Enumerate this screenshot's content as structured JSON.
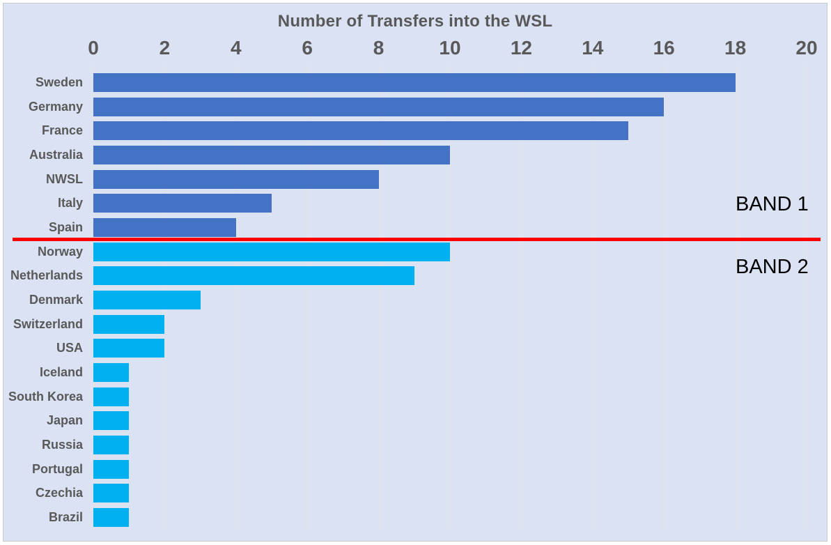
{
  "chart_data": {
    "type": "bar",
    "orientation": "horizontal",
    "title": "Number of Transfers into the WSL",
    "xlabel": "",
    "ylabel": "",
    "xlim": [
      0,
      20
    ],
    "x_ticks": [
      0,
      2,
      4,
      6,
      8,
      10,
      12,
      14,
      16,
      18,
      20
    ],
    "grid": true,
    "legend": "none",
    "axis_position": "top",
    "categories": [
      "Sweden",
      "Germany",
      "France",
      "Australia",
      "NWSL",
      "Italy",
      "Spain",
      "Norway",
      "Netherlands",
      "Denmark",
      "Switzerland",
      "USA",
      "Iceland",
      "South Korea",
      "Japan",
      "Russia",
      "Portugal",
      "Czechia",
      "Brazil"
    ],
    "values": [
      18,
      16,
      15,
      10,
      8,
      5,
      4,
      10,
      9,
      3,
      2,
      2,
      1,
      1,
      1,
      1,
      1,
      1,
      1
    ],
    "series": [
      {
        "name": "Band 1",
        "color": "#4472C4",
        "categories": [
          "Sweden",
          "Germany",
          "France",
          "Australia",
          "NWSL",
          "Italy",
          "Spain"
        ],
        "values": [
          18,
          16,
          15,
          10,
          8,
          5,
          4
        ]
      },
      {
        "name": "Band 2",
        "color": "#00B0F0",
        "categories": [
          "Norway",
          "Netherlands",
          "Denmark",
          "Switzerland",
          "USA",
          "Iceland",
          "South Korea",
          "Japan",
          "Russia",
          "Portugal",
          "Czechia",
          "Brazil"
        ],
        "values": [
          10,
          9,
          3,
          2,
          2,
          1,
          1,
          1,
          1,
          1,
          1,
          1
        ]
      }
    ],
    "annotations": [
      {
        "text": "BAND 1",
        "color": "#000000",
        "position": "right-of-band-1"
      },
      {
        "text": "BAND 2",
        "color": "#000000",
        "position": "right-of-band-2"
      }
    ],
    "divider": {
      "color": "#FF0000",
      "after_category": "Spain",
      "full_width": true
    }
  },
  "colors": {
    "background": "#DAE2F3",
    "band1_bar": "#4472C4",
    "band2_bar": "#00B0F0",
    "gridline": "#E6E4E0",
    "axis_text": "#595959",
    "title_text": "#595959",
    "divider_line": "#FF0000",
    "annotation_text": "#000000",
    "frame_border": "#C9C9C9"
  }
}
